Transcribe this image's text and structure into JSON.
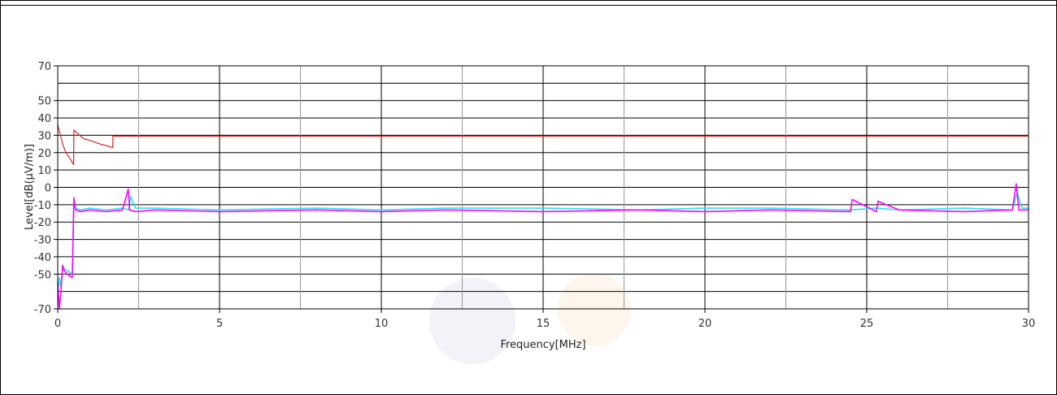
{
  "chart_data": {
    "type": "line",
    "title": "",
    "xlabel": "Frequency[MHz]",
    "ylabel": "Level[dB(µV/m)]",
    "xlim": [
      0,
      30
    ],
    "ylim": [
      -70,
      70
    ],
    "x_ticks": [
      0,
      5,
      10,
      15,
      20,
      25,
      30
    ],
    "x_tick_labels": [
      "0",
      "5",
      "10",
      "15",
      "20",
      "25",
      "30"
    ],
    "x_minor_ticks": [
      2.5,
      7.5,
      12.5,
      17.5,
      22.5,
      27.5
    ],
    "y_ticks": [
      70,
      50,
      40,
      30,
      20,
      10,
      0,
      -10,
      -20,
      -30,
      -40,
      -50,
      -70
    ],
    "y_tick_labels": [
      "70",
      "50",
      "40",
      "30",
      "20",
      "10",
      "0",
      "-10",
      "-20",
      "-30",
      "-40",
      "-50",
      "-70"
    ],
    "grid": true,
    "colors": {
      "limit": "#e02020",
      "trace_cyan": "#30e0f0",
      "trace_magenta": "#ff00ff",
      "grid_major": "#000000",
      "grid_minor": "#999999"
    },
    "series": [
      {
        "color": "#e02020",
        "x": [
          0.0,
          0.15,
          0.25,
          0.4,
          0.49,
          0.5,
          0.8,
          1.0,
          1.3,
          1.7,
          1.705,
          30
        ],
        "y": [
          36,
          25,
          20,
          16,
          13,
          33,
          28,
          27,
          25,
          23,
          29.5,
          29.5
        ]
      },
      {
        "color": "#30e0f0",
        "x": [
          0.0,
          0.05,
          0.1,
          0.15,
          0.2,
          0.3,
          0.45,
          0.5,
          0.55,
          0.7,
          1.0,
          1.5,
          2.0,
          2.2,
          2.25,
          2.4,
          3.0,
          5,
          8,
          10,
          12,
          15,
          18,
          20,
          22,
          24.5,
          25.3,
          26,
          28,
          29.5,
          29.65,
          29.8,
          30
        ],
        "y": [
          -60,
          -52,
          -58,
          -45,
          -47,
          -48,
          -50,
          -8,
          -12,
          -13,
          -12,
          -13,
          -12,
          -13,
          -5,
          -12,
          -12,
          -13,
          -12,
          -13,
          -12,
          -12,
          -13,
          -12,
          -12,
          -13,
          -12,
          -13,
          -12,
          -13,
          -3,
          -12,
          -12
        ]
      },
      {
        "color": "#ff00ff",
        "x": [
          0.0,
          0.05,
          0.1,
          0.15,
          0.2,
          0.3,
          0.45,
          0.5,
          0.55,
          0.7,
          1.0,
          1.5,
          2.0,
          2.18,
          2.22,
          2.4,
          3.0,
          5,
          8,
          10,
          12,
          15,
          18,
          20,
          22,
          24.5,
          24.55,
          25.3,
          25.35,
          26,
          28,
          29.5,
          29.62,
          29.7,
          30
        ],
        "y": [
          -55,
          -70,
          -60,
          -45,
          -48,
          -50,
          -52,
          -6,
          -13,
          -14,
          -13,
          -14,
          -13,
          -1,
          -13,
          -14,
          -13,
          -14,
          -13,
          -14,
          -13,
          -14,
          -13,
          -14,
          -13,
          -14,
          -7,
          -14,
          -8,
          -13,
          -14,
          -13,
          2,
          -13,
          -13
        ]
      }
    ]
  }
}
